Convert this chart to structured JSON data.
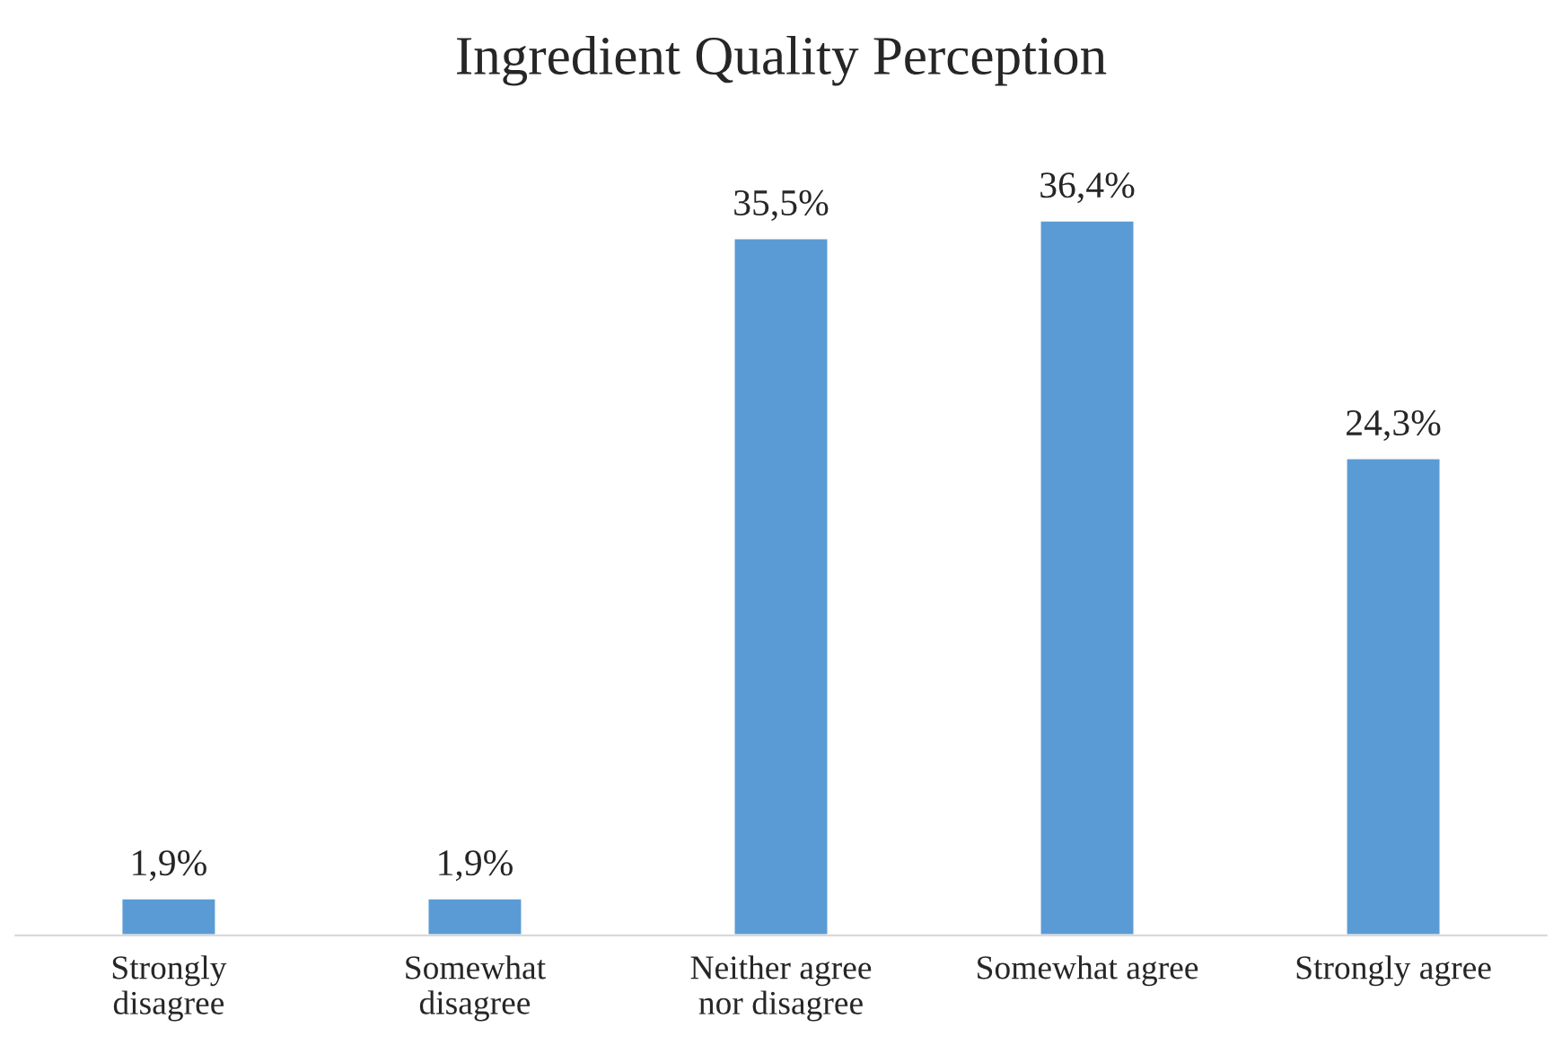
{
  "chart_data": {
    "type": "bar",
    "title": "Ingredient Quality Perception",
    "categories": [
      "Strongly\ndisagree",
      "Somewhat\ndisagree",
      "Neither agree\nnor disagree",
      "Somewhat agree",
      "Strongly agree"
    ],
    "values": [
      1.9,
      1.9,
      35.5,
      36.4,
      24.3
    ],
    "value_labels": [
      "1,9%",
      "1,9%",
      "35,5%",
      "36,4%",
      "24,3%"
    ],
    "color": "#5b9bd5",
    "grid": false,
    "legend": false
  }
}
